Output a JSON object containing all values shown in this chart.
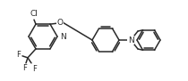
{
  "bg_color": "#ffffff",
  "line_color": "#2a2a2a",
  "line_width": 1.1,
  "figsize": [
    2.1,
    0.91
  ],
  "dpi": 100,
  "xlim": [
    0,
    210
  ],
  "ylim": [
    0,
    91
  ]
}
